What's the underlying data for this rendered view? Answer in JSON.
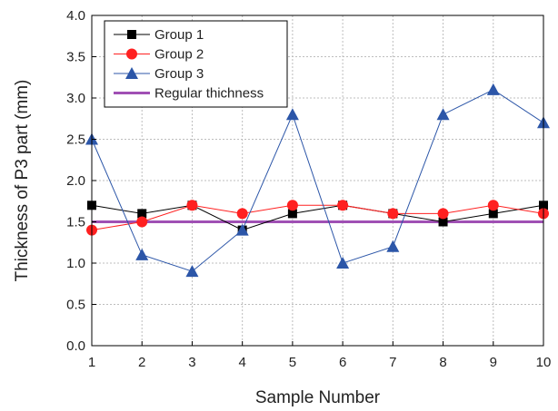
{
  "chart_data": {
    "type": "line",
    "title": "",
    "xlabel": "Sample Number",
    "ylabel": "Thickness of P3 part (mm)",
    "x": [
      1,
      2,
      3,
      4,
      5,
      6,
      7,
      8,
      9,
      10
    ],
    "x_ticks": [
      "1",
      "2",
      "3",
      "4",
      "5",
      "6",
      "7",
      "8",
      "9",
      "10"
    ],
    "xlim": [
      1,
      10
    ],
    "ylim": [
      0,
      4
    ],
    "y_ticks": [
      "0.0",
      "0.5",
      "1.0",
      "1.5",
      "2.0",
      "2.5",
      "3.0",
      "3.5",
      "4.0"
    ],
    "grid": true,
    "legend_position": "top-left",
    "series": [
      {
        "name": "Group 1",
        "values": [
          1.7,
          1.6,
          1.7,
          1.4,
          1.6,
          1.7,
          1.6,
          1.5,
          1.6,
          1.7
        ],
        "color": "#000000",
        "marker": "square"
      },
      {
        "name": "Group 2",
        "values": [
          1.4,
          1.5,
          1.7,
          1.6,
          1.7,
          1.7,
          1.6,
          1.6,
          1.7,
          1.6
        ],
        "color": "#ff2020",
        "marker": "circle"
      },
      {
        "name": "Group 3",
        "values": [
          2.5,
          1.1,
          0.9,
          1.4,
          2.8,
          1.0,
          1.2,
          2.8,
          3.1,
          2.7
        ],
        "color": "#2c56a8",
        "marker": "triangle"
      },
      {
        "name": "Regular thichness",
        "values": [
          1.5,
          1.5,
          1.5,
          1.5,
          1.5,
          1.5,
          1.5,
          1.5,
          1.5,
          1.5
        ],
        "color": "#a050b4",
        "marker": "none"
      }
    ]
  }
}
